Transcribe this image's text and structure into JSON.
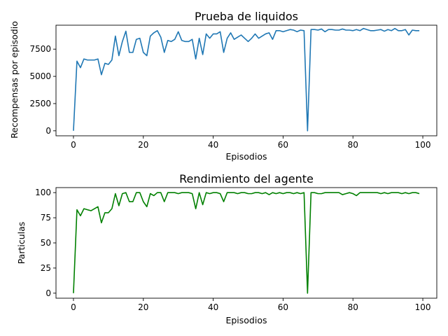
{
  "chart_data": [
    {
      "type": "line",
      "title": "Prueba de liquidos",
      "xlabel": "Episodios",
      "ylabel": "Recompensas por episodio",
      "xlim": [
        -5,
        104
      ],
      "ylim": [
        -460,
        9700
      ],
      "xticks": [
        0,
        20,
        40,
        60,
        80,
        100
      ],
      "yticks": [
        0,
        2500,
        5000,
        7500
      ],
      "ytick_labels": [
        "0",
        "2500",
        "5000",
        "7500"
      ],
      "grid": false,
      "color": "#1f77b4",
      "x": [
        0,
        1,
        2,
        3,
        4,
        5,
        6,
        7,
        8,
        9,
        10,
        11,
        12,
        13,
        14,
        15,
        16,
        17,
        18,
        19,
        20,
        21,
        22,
        23,
        24,
        25,
        26,
        27,
        28,
        29,
        30,
        31,
        32,
        33,
        34,
        35,
        36,
        37,
        38,
        39,
        40,
        41,
        42,
        43,
        44,
        45,
        46,
        47,
        48,
        49,
        50,
        51,
        52,
        53,
        54,
        55,
        56,
        57,
        58,
        59,
        60,
        61,
        62,
        63,
        64,
        65,
        66,
        67,
        68,
        69,
        70,
        71,
        72,
        73,
        74,
        75,
        76,
        77,
        78,
        79,
        80,
        81,
        82,
        83,
        84,
        85,
        86,
        87,
        88,
        89,
        90,
        91,
        92,
        93,
        94,
        95,
        96,
        97,
        98,
        99
      ],
      "values": [
        0,
        6400,
        5800,
        6600,
        6500,
        6500,
        6500,
        6600,
        5150,
        6200,
        6100,
        6500,
        8700,
        6900,
        8200,
        9150,
        7200,
        7200,
        8400,
        8500,
        7200,
        6900,
        8700,
        9000,
        9200,
        8600,
        7200,
        8300,
        8200,
        8400,
        9100,
        8300,
        8200,
        8200,
        8400,
        6600,
        8500,
        7000,
        8900,
        8500,
        8900,
        8900,
        9100,
        7200,
        8500,
        9000,
        8400,
        8600,
        8800,
        8500,
        8200,
        8500,
        8900,
        8500,
        8700,
        8900,
        9000,
        8400,
        9200,
        9200,
        9100,
        9200,
        9300,
        9250,
        9100,
        9250,
        9200,
        0,
        9300,
        9300,
        9250,
        9350,
        9100,
        9300,
        9300,
        9250,
        9250,
        9350,
        9250,
        9250,
        9200,
        9300,
        9200,
        9400,
        9300,
        9200,
        9200,
        9250,
        9300,
        9150,
        9300,
        9200,
        9400,
        9200,
        9200,
        9300,
        8800,
        9250,
        9200,
        9200
      ]
    },
    {
      "type": "line",
      "title": "Rendimiento del agente",
      "xlabel": "Episodios",
      "ylabel": "Particulas",
      "xlim": [
        -5,
        104
      ],
      "ylim": [
        -5,
        105
      ],
      "xticks": [
        0,
        20,
        40,
        60,
        80,
        100
      ],
      "yticks": [
        0,
        25,
        50,
        75,
        100
      ],
      "ytick_labels": [
        "0",
        "25",
        "50",
        "75",
        "100"
      ],
      "grid": false,
      "color": "#008000",
      "x": [
        0,
        1,
        2,
        3,
        4,
        5,
        6,
        7,
        8,
        9,
        10,
        11,
        12,
        13,
        14,
        15,
        16,
        17,
        18,
        19,
        20,
        21,
        22,
        23,
        24,
        25,
        26,
        27,
        28,
        29,
        30,
        31,
        32,
        33,
        34,
        35,
        36,
        37,
        38,
        39,
        40,
        41,
        42,
        43,
        44,
        45,
        46,
        47,
        48,
        49,
        50,
        51,
        52,
        53,
        54,
        55,
        56,
        57,
        58,
        59,
        60,
        61,
        62,
        63,
        64,
        65,
        66,
        67,
        68,
        69,
        70,
        71,
        72,
        73,
        74,
        75,
        76,
        77,
        78,
        79,
        80,
        81,
        82,
        83,
        84,
        85,
        86,
        87,
        88,
        89,
        90,
        91,
        92,
        93,
        94,
        95,
        96,
        97,
        98,
        99
      ],
      "values": [
        0,
        83,
        77,
        84,
        83,
        82,
        84,
        86,
        70,
        80,
        80,
        84,
        99,
        87,
        99,
        100,
        91,
        91,
        100,
        100,
        91,
        86,
        99,
        97,
        100,
        100,
        91,
        100,
        100,
        100,
        99,
        100,
        100,
        100,
        99,
        84,
        100,
        88,
        100,
        99,
        100,
        100,
        99,
        91,
        100,
        100,
        100,
        99,
        100,
        100,
        99,
        99,
        100,
        100,
        99,
        100,
        98,
        100,
        99,
        100,
        99,
        100,
        100,
        99,
        100,
        99,
        100,
        0,
        100,
        100,
        99,
        99,
        100,
        100,
        100,
        100,
        100,
        98,
        99,
        100,
        99,
        97,
        100,
        100,
        100,
        100,
        100,
        100,
        99,
        100,
        99,
        100,
        100,
        100,
        99,
        100,
        99,
        100,
        100,
        99
      ]
    }
  ]
}
